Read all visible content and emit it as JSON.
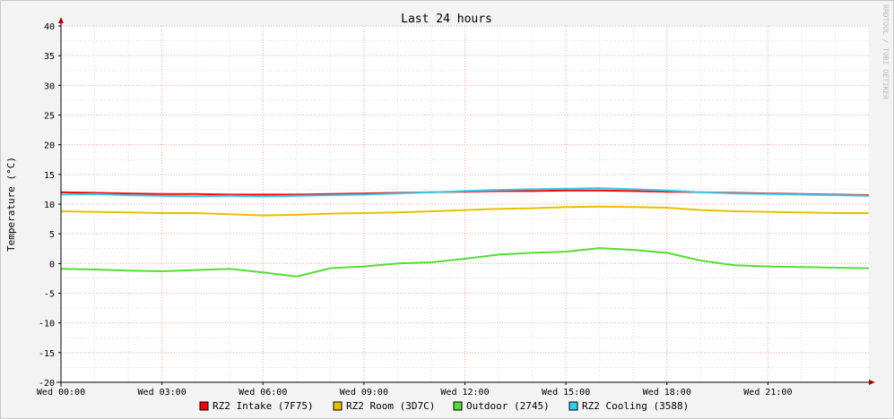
{
  "chart_data": {
    "type": "line",
    "title": "Last 24 hours",
    "ylabel": "Temperature (°C)",
    "xlabel": "",
    "watermark": "RRDTOOL / TOBI OETIKER",
    "ylim": [
      -20,
      40
    ],
    "yticks": [
      -20,
      -15,
      -10,
      -5,
      0,
      5,
      10,
      15,
      20,
      25,
      30,
      35,
      40
    ],
    "ytick_labels": [
      "-20",
      "-15",
      "-10",
      "-5",
      "0",
      "5",
      "10",
      "15",
      "20",
      "25",
      "30",
      "35",
      "40"
    ],
    "xlim": [
      0,
      24
    ],
    "xticks": [
      0,
      3,
      6,
      9,
      12,
      15,
      18,
      21
    ],
    "xtick_labels": [
      "Wed 00:00",
      "Wed 03:00",
      "Wed 06:00",
      "Wed 09:00",
      "Wed 12:00",
      "Wed 15:00",
      "Wed 18:00",
      "Wed 21:00"
    ],
    "grid": true,
    "legend_position": "bottom",
    "background_color": "#f3f3f3",
    "plot_background_color": "#ffffff",
    "major_grid_color": "#f0a0a0",
    "minor_grid_color": "#dddddd",
    "x": [
      0,
      1,
      2,
      3,
      4,
      5,
      6,
      7,
      8,
      9,
      10,
      11,
      12,
      13,
      14,
      15,
      16,
      17,
      18,
      19,
      20,
      21,
      22,
      23,
      24
    ],
    "series": [
      {
        "name": "RZ2 Intake (7F75)",
        "color": "#ff0000",
        "values": [
          12.0,
          11.9,
          11.8,
          11.7,
          11.7,
          11.6,
          11.6,
          11.6,
          11.7,
          11.8,
          11.9,
          12.0,
          12.1,
          12.2,
          12.2,
          12.3,
          12.3,
          12.2,
          12.1,
          12.0,
          11.9,
          11.8,
          11.7,
          11.6,
          11.5
        ]
      },
      {
        "name": "RZ2 Room (3D7C)",
        "color": "#e6c000",
        "values": [
          8.8,
          8.7,
          8.6,
          8.5,
          8.5,
          8.3,
          8.1,
          8.2,
          8.4,
          8.5,
          8.6,
          8.8,
          9.0,
          9.2,
          9.3,
          9.5,
          9.6,
          9.5,
          9.4,
          9.0,
          8.8,
          8.7,
          8.6,
          8.5,
          8.5
        ]
      },
      {
        "name": "Outdoor (2745)",
        "color": "#55dd33",
        "values": [
          -0.9,
          -1.0,
          -1.2,
          -1.3,
          -1.1,
          -0.9,
          -1.5,
          -2.2,
          -0.8,
          -0.5,
          0.0,
          0.2,
          0.8,
          1.5,
          1.8,
          2.0,
          2.6,
          2.3,
          1.8,
          0.5,
          -0.3,
          -0.5,
          -0.6,
          -0.7,
          -0.8
        ]
      },
      {
        "name": "RZ2 Cooling (3588)",
        "color": "#33ccee",
        "values": [
          11.6,
          11.7,
          11.5,
          11.4,
          11.3,
          11.4,
          11.3,
          11.4,
          11.5,
          11.6,
          11.8,
          12.0,
          12.2,
          12.4,
          12.5,
          12.6,
          12.7,
          12.5,
          12.3,
          12.0,
          11.8,
          11.7,
          11.6,
          11.5,
          11.4
        ]
      }
    ]
  }
}
